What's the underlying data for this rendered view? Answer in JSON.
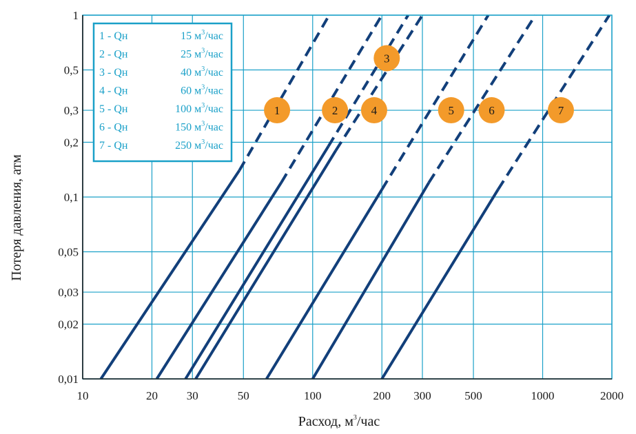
{
  "chart_data": {
    "type": "line",
    "x_scale": "log",
    "y_scale": "log",
    "xlim": [
      10,
      2000
    ],
    "ylim": [
      0.01,
      1
    ],
    "x_ticks": [
      {
        "value": 10,
        "label": "10"
      },
      {
        "value": 20,
        "label": "20"
      },
      {
        "value": 30,
        "label": "30"
      },
      {
        "value": 50,
        "label": "50"
      },
      {
        "value": 100,
        "label": "100"
      },
      {
        "value": 200,
        "label": "200"
      },
      {
        "value": 300,
        "label": "300"
      },
      {
        "value": 500,
        "label": "500"
      },
      {
        "value": 1000,
        "label": "1000"
      },
      {
        "value": 2000,
        "label": "2000"
      }
    ],
    "y_ticks": [
      {
        "value": 0.01,
        "label": "0,01"
      },
      {
        "value": 0.02,
        "label": "0,02"
      },
      {
        "value": 0.03,
        "label": "0,03"
      },
      {
        "value": 0.05,
        "label": "0,05"
      },
      {
        "value": 0.1,
        "label": "0,1"
      },
      {
        "value": 0.2,
        "label": "0,2"
      },
      {
        "value": 0.3,
        "label": "0,3"
      },
      {
        "value": 0.5,
        "label": "0,5"
      },
      {
        "value": 1,
        "label": "1"
      }
    ],
    "xlabel_main": "Расход, м",
    "xlabel_sup": "3",
    "xlabel_tail": "/час",
    "ylabel": "Потеря  давления, атм",
    "grid": true,
    "legend_position": "top-left",
    "line_color": "#123f7a",
    "grid_color": "#1aa0c8",
    "badge_color": "#f39a2a",
    "series": [
      {
        "legend": "1 - Qн",
        "flow": "15 м",
        "unit_sup": "3",
        "unit_tail": "/час",
        "badge": "1",
        "badge_x": 70,
        "badge_y": 0.3,
        "start": [
          12,
          0.01
        ],
        "transition": [
          48,
          0.14
        ],
        "end": [
          118,
          1
        ]
      },
      {
        "legend": "2 - Qн",
        "flow": "25 м",
        "unit_sup": "3",
        "unit_tail": "/час",
        "badge": "2",
        "badge_x": 125,
        "badge_y": 0.3,
        "start": [
          21,
          0.01
        ],
        "transition": [
          73,
          0.12
        ],
        "end": [
          200,
          1
        ]
      },
      {
        "legend": "3 - Qн",
        "flow": "40 м",
        "unit_sup": "3",
        "unit_tail": "/час",
        "badge": "3",
        "badge_x": 210,
        "badge_y": 0.58,
        "start": [
          28,
          0.01
        ],
        "transition": [
          117,
          0.19
        ],
        "end": [
          260,
          1
        ]
      },
      {
        "legend": "4 - Qн",
        "flow": "60 м",
        "unit_sup": "3",
        "unit_tail": "/час",
        "badge": "4",
        "badge_x": 185,
        "badge_y": 0.3,
        "start": [
          31,
          0.01
        ],
        "transition": [
          126,
          0.18
        ],
        "end": [
          300,
          1
        ]
      },
      {
        "legend": "5 - Qн",
        "flow": "100 м",
        "unit_sup": "3",
        "unit_tail": "/час",
        "badge": "5",
        "badge_x": 400,
        "badge_y": 0.3,
        "start": [
          63,
          0.01
        ],
        "transition": [
          200,
          0.11
        ],
        "end": [
          580,
          1
        ]
      },
      {
        "legend": "6 - Qн",
        "flow": "150 м",
        "unit_sup": "3",
        "unit_tail": "/час",
        "badge": "6",
        "badge_x": 600,
        "badge_y": 0.3,
        "start": [
          100,
          0.01
        ],
        "transition": [
          320,
          0.12
        ],
        "end": [
          930,
          1
        ]
      },
      {
        "legend": "7 - Qн",
        "flow": "250 м",
        "unit_sup": "3",
        "unit_tail": "/час",
        "badge": "7",
        "badge_x": 1200,
        "badge_y": 0.3,
        "start": [
          200,
          0.01
        ],
        "transition": [
          640,
          0.11
        ],
        "end": [
          1950,
          1
        ]
      }
    ]
  }
}
